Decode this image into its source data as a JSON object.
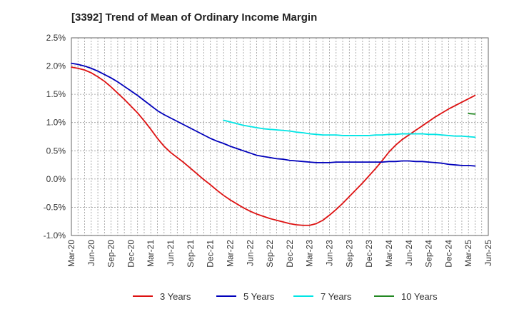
{
  "chart_data": {
    "type": "line",
    "title": "[3392]  Trend of Mean of Ordinary Income Margin",
    "xlabel": "",
    "ylabel": "",
    "x_ticks": [
      "Mar-20",
      "Jun-20",
      "Sep-20",
      "Dec-20",
      "Mar-21",
      "Jun-21",
      "Sep-21",
      "Dec-21",
      "Mar-22",
      "Jun-22",
      "Sep-22",
      "Dec-22",
      "Mar-23",
      "Jun-23",
      "Sep-23",
      "Dec-23",
      "Mar-24",
      "Jun-24",
      "Sep-24",
      "Dec-24",
      "Mar-25",
      "Jun-25"
    ],
    "y_ticks": [
      "2.5%",
      "2.0%",
      "1.5%",
      "1.0%",
      "0.5%",
      "0.0%",
      "-0.5%",
      "-1.0%"
    ],
    "ylim": [
      -1.0,
      2.5
    ],
    "y_unit": "%",
    "grid": true,
    "legend_position": "bottom",
    "series": [
      {
        "name": "3 Years",
        "color": "#dd1111",
        "points": [
          [
            "Mar-20",
            1.98
          ],
          [
            "Apr-20",
            1.96
          ],
          [
            "May-20",
            1.93
          ],
          [
            "Jun-20",
            1.88
          ],
          [
            "Jul-20",
            1.81
          ],
          [
            "Aug-20",
            1.73
          ],
          [
            "Sep-20",
            1.63
          ],
          [
            "Oct-20",
            1.52
          ],
          [
            "Nov-20",
            1.41
          ],
          [
            "Dec-20",
            1.29
          ],
          [
            "Jan-21",
            1.17
          ],
          [
            "Feb-21",
            1.03
          ],
          [
            "Mar-21",
            0.88
          ],
          [
            "Apr-21",
            0.72
          ],
          [
            "May-21",
            0.58
          ],
          [
            "Jun-21",
            0.47
          ],
          [
            "Jul-21",
            0.38
          ],
          [
            "Aug-21",
            0.29
          ],
          [
            "Sep-21",
            0.19
          ],
          [
            "Oct-21",
            0.09
          ],
          [
            "Nov-21",
            -0.01
          ],
          [
            "Dec-21",
            -0.1
          ],
          [
            "Jan-22",
            -0.2
          ],
          [
            "Feb-22",
            -0.29
          ],
          [
            "Mar-22",
            -0.37
          ],
          [
            "Apr-22",
            -0.44
          ],
          [
            "May-22",
            -0.51
          ],
          [
            "Jun-22",
            -0.57
          ],
          [
            "Jul-22",
            -0.62
          ],
          [
            "Aug-22",
            -0.66
          ],
          [
            "Sep-22",
            -0.7
          ],
          [
            "Oct-22",
            -0.73
          ],
          [
            "Nov-22",
            -0.76
          ],
          [
            "Dec-22",
            -0.79
          ],
          [
            "Jan-23",
            -0.81
          ],
          [
            "Feb-23",
            -0.82
          ],
          [
            "Mar-23",
            -0.82
          ],
          [
            "Apr-23",
            -0.79
          ],
          [
            "May-23",
            -0.73
          ],
          [
            "Jun-23",
            -0.64
          ],
          [
            "Jul-23",
            -0.54
          ],
          [
            "Aug-23",
            -0.43
          ],
          [
            "Sep-23",
            -0.31
          ],
          [
            "Oct-23",
            -0.19
          ],
          [
            "Nov-23",
            -0.07
          ],
          [
            "Dec-23",
            0.06
          ],
          [
            "Jan-24",
            0.19
          ],
          [
            "Feb-24",
            0.33
          ],
          [
            "Mar-24",
            0.48
          ],
          [
            "Apr-24",
            0.6
          ],
          [
            "May-24",
            0.7
          ],
          [
            "Jun-24",
            0.78
          ],
          [
            "Jul-24",
            0.86
          ],
          [
            "Aug-24",
            0.94
          ],
          [
            "Sep-24",
            1.02
          ],
          [
            "Oct-24",
            1.1
          ],
          [
            "Nov-24",
            1.17
          ],
          [
            "Dec-24",
            1.24
          ],
          [
            "Jan-25",
            1.3
          ],
          [
            "Feb-25",
            1.36
          ],
          [
            "Mar-25",
            1.42
          ],
          [
            "Apr-25",
            1.48
          ]
        ]
      },
      {
        "name": "5 Years",
        "color": "#0000bb",
        "points": [
          [
            "Mar-20",
            2.05
          ],
          [
            "Apr-20",
            2.03
          ],
          [
            "May-20",
            2.0
          ],
          [
            "Jun-20",
            1.96
          ],
          [
            "Jul-20",
            1.91
          ],
          [
            "Aug-20",
            1.85
          ],
          [
            "Sep-20",
            1.79
          ],
          [
            "Oct-20",
            1.72
          ],
          [
            "Nov-20",
            1.64
          ],
          [
            "Dec-20",
            1.56
          ],
          [
            "Jan-21",
            1.48
          ],
          [
            "Feb-21",
            1.39
          ],
          [
            "Mar-21",
            1.3
          ],
          [
            "Apr-21",
            1.21
          ],
          [
            "May-21",
            1.14
          ],
          [
            "Jun-21",
            1.08
          ],
          [
            "Jul-21",
            1.02
          ],
          [
            "Aug-21",
            0.96
          ],
          [
            "Sep-21",
            0.9
          ],
          [
            "Oct-21",
            0.84
          ],
          [
            "Nov-21",
            0.78
          ],
          [
            "Dec-21",
            0.72
          ],
          [
            "Jan-22",
            0.67
          ],
          [
            "Feb-22",
            0.63
          ],
          [
            "Mar-22",
            0.58
          ],
          [
            "Apr-22",
            0.54
          ],
          [
            "May-22",
            0.5
          ],
          [
            "Jun-22",
            0.46
          ],
          [
            "Jul-22",
            0.42
          ],
          [
            "Aug-22",
            0.4
          ],
          [
            "Sep-22",
            0.38
          ],
          [
            "Oct-22",
            0.36
          ],
          [
            "Nov-22",
            0.35
          ],
          [
            "Dec-22",
            0.33
          ],
          [
            "Jan-23",
            0.32
          ],
          [
            "Feb-23",
            0.31
          ],
          [
            "Mar-23",
            0.3
          ],
          [
            "Apr-23",
            0.29
          ],
          [
            "May-23",
            0.29
          ],
          [
            "Jun-23",
            0.29
          ],
          [
            "Jul-23",
            0.3
          ],
          [
            "Aug-23",
            0.3
          ],
          [
            "Sep-23",
            0.3
          ],
          [
            "Oct-23",
            0.3
          ],
          [
            "Nov-23",
            0.3
          ],
          [
            "Dec-23",
            0.3
          ],
          [
            "Jan-24",
            0.3
          ],
          [
            "Feb-24",
            0.3
          ],
          [
            "Mar-24",
            0.31
          ],
          [
            "Apr-24",
            0.31
          ],
          [
            "May-24",
            0.32
          ],
          [
            "Jun-24",
            0.32
          ],
          [
            "Jul-24",
            0.31
          ],
          [
            "Aug-24",
            0.31
          ],
          [
            "Sep-24",
            0.3
          ],
          [
            "Oct-24",
            0.29
          ],
          [
            "Nov-24",
            0.28
          ],
          [
            "Dec-24",
            0.26
          ],
          [
            "Jan-25",
            0.25
          ],
          [
            "Feb-25",
            0.24
          ],
          [
            "Mar-25",
            0.24
          ],
          [
            "Apr-25",
            0.23
          ]
        ]
      },
      {
        "name": "7 Years",
        "color": "#00e5e5",
        "points": [
          [
            "Feb-22",
            1.04
          ],
          [
            "Mar-22",
            1.01
          ],
          [
            "Apr-22",
            0.98
          ],
          [
            "May-22",
            0.95
          ],
          [
            "Jun-22",
            0.93
          ],
          [
            "Jul-22",
            0.91
          ],
          [
            "Aug-22",
            0.89
          ],
          [
            "Sep-22",
            0.88
          ],
          [
            "Oct-22",
            0.87
          ],
          [
            "Nov-22",
            0.86
          ],
          [
            "Dec-22",
            0.85
          ],
          [
            "Jan-23",
            0.83
          ],
          [
            "Feb-23",
            0.82
          ],
          [
            "Mar-23",
            0.8
          ],
          [
            "Apr-23",
            0.79
          ],
          [
            "May-23",
            0.78
          ],
          [
            "Jun-23",
            0.78
          ],
          [
            "Jul-23",
            0.78
          ],
          [
            "Aug-23",
            0.77
          ],
          [
            "Sep-23",
            0.77
          ],
          [
            "Oct-23",
            0.77
          ],
          [
            "Nov-23",
            0.77
          ],
          [
            "Dec-23",
            0.77
          ],
          [
            "Jan-24",
            0.78
          ],
          [
            "Feb-24",
            0.78
          ],
          [
            "Mar-24",
            0.79
          ],
          [
            "Apr-24",
            0.79
          ],
          [
            "May-24",
            0.8
          ],
          [
            "Jun-24",
            0.8
          ],
          [
            "Jul-24",
            0.8
          ],
          [
            "Aug-24",
            0.8
          ],
          [
            "Sep-24",
            0.79
          ],
          [
            "Oct-24",
            0.79
          ],
          [
            "Nov-24",
            0.78
          ],
          [
            "Dec-24",
            0.77
          ],
          [
            "Jan-25",
            0.76
          ],
          [
            "Feb-25",
            0.76
          ],
          [
            "Mar-25",
            0.75
          ],
          [
            "Apr-25",
            0.74
          ]
        ]
      },
      {
        "name": "10 Years",
        "color": "#228822",
        "points": [
          [
            "Mar-25",
            1.16
          ],
          [
            "Apr-25",
            1.15
          ]
        ]
      }
    ]
  }
}
